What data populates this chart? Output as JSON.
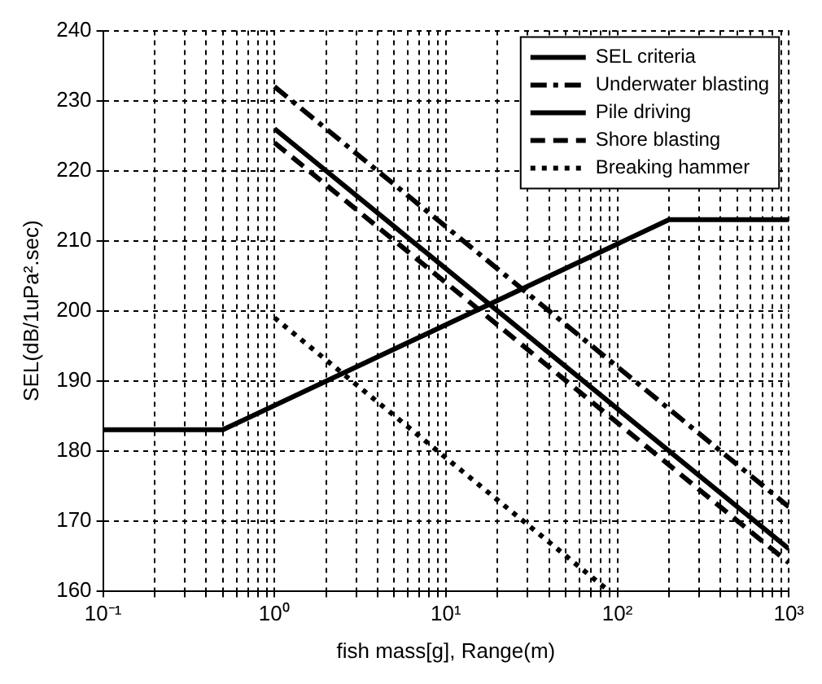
{
  "chart_data": {
    "type": "line",
    "xlabel": "fish mass[g], Range(m)",
    "ylabel": "SEL(dB/1uPa².sec)",
    "log": "x",
    "xlim": [
      0.1,
      1000
    ],
    "ylim": [
      160,
      240
    ],
    "xticks": [
      {
        "value": 0.1,
        "label": "10⁻¹"
      },
      {
        "value": 0.2,
        "label": null
      },
      {
        "value": 0.3,
        "label": null
      },
      {
        "value": 0.4,
        "label": null
      },
      {
        "value": 0.5,
        "label": null
      },
      {
        "value": 0.6,
        "label": null
      },
      {
        "value": 0.7,
        "label": null
      },
      {
        "value": 0.8,
        "label": null
      },
      {
        "value": 0.9,
        "label": null
      },
      {
        "value": 1,
        "label": "10⁰"
      },
      {
        "value": 2,
        "label": null
      },
      {
        "value": 3,
        "label": null
      },
      {
        "value": 4,
        "label": null
      },
      {
        "value": 5,
        "label": null
      },
      {
        "value": 6,
        "label": null
      },
      {
        "value": 7,
        "label": null
      },
      {
        "value": 8,
        "label": null
      },
      {
        "value": 9,
        "label": null
      },
      {
        "value": 10,
        "label": "10¹"
      },
      {
        "value": 20,
        "label": null
      },
      {
        "value": 30,
        "label": null
      },
      {
        "value": 40,
        "label": null
      },
      {
        "value": 50,
        "label": null
      },
      {
        "value": 60,
        "label": null
      },
      {
        "value": 70,
        "label": null
      },
      {
        "value": 80,
        "label": null
      },
      {
        "value": 90,
        "label": null
      },
      {
        "value": 100,
        "label": "10²"
      },
      {
        "value": 200,
        "label": null
      },
      {
        "value": 300,
        "label": null
      },
      {
        "value": 400,
        "label": null
      },
      {
        "value": 500,
        "label": null
      },
      {
        "value": 600,
        "label": null
      },
      {
        "value": 700,
        "label": null
      },
      {
        "value": 800,
        "label": null
      },
      {
        "value": 900,
        "label": null
      },
      {
        "value": 1000,
        "label": "10³"
      }
    ],
    "yticks": [
      160,
      170,
      180,
      190,
      200,
      210,
      220,
      230,
      240
    ],
    "grid": true,
    "legend": "top right",
    "marker": "none",
    "series": [
      {
        "name": "SEL criteria",
        "color": "#000000",
        "line_style": "solid",
        "x": [
          0.1,
          0.5,
          200,
          1000
        ],
        "values": [
          183,
          183,
          213,
          213
        ]
      },
      {
        "name": "Underwater blasting",
        "color": "#000000",
        "line_style": "dashdot",
        "x": [
          1,
          1000
        ],
        "values": [
          232,
          172
        ]
      },
      {
        "name": "Pile driving",
        "color": "#000000",
        "line_style": "solid",
        "x": [
          1,
          1000
        ],
        "values": [
          226,
          166
        ]
      },
      {
        "name": "Shore blasting",
        "color": "#000000",
        "line_style": "dashed",
        "x": [
          1,
          1000
        ],
        "values": [
          224,
          164
        ]
      },
      {
        "name": "Breaking hammer",
        "color": "#000000",
        "line_style": "dotted",
        "x": [
          1,
          89
        ],
        "values": [
          199,
          160
        ]
      }
    ]
  }
}
